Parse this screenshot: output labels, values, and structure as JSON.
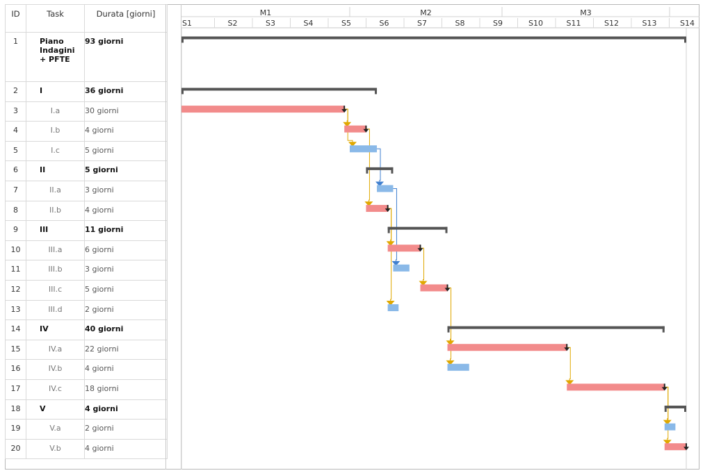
{
  "table": {
    "headers": {
      "id": "ID",
      "task": "Task",
      "duration": "Durata [giorni]"
    },
    "rows": [
      {
        "id": "1",
        "task": "Piano Indagini + PFTE",
        "duration": "93 giorni",
        "summary": true
      },
      {
        "id": "2",
        "task": "I",
        "duration": "36 giorni",
        "summary": true
      },
      {
        "id": "3",
        "task": "I.a",
        "duration": "30 giorni",
        "summary": false
      },
      {
        "id": "4",
        "task": "I.b",
        "duration": "4 giorni",
        "summary": false
      },
      {
        "id": "5",
        "task": "I.c",
        "duration": "5 giorni",
        "summary": false
      },
      {
        "id": "6",
        "task": "II",
        "duration": "5 giorni",
        "summary": true
      },
      {
        "id": "7",
        "task": "II.a",
        "duration": "3 giorni",
        "summary": false
      },
      {
        "id": "8",
        "task": "II.b",
        "duration": "4 giorni",
        "summary": false
      },
      {
        "id": "9",
        "task": "III",
        "duration": "11 giorni",
        "summary": true
      },
      {
        "id": "10",
        "task": "III.a",
        "duration": "6 giorni",
        "summary": false
      },
      {
        "id": "11",
        "task": "III.b",
        "duration": "3 giorni",
        "summary": false
      },
      {
        "id": "12",
        "task": "III.c",
        "duration": "5 giorni",
        "summary": false
      },
      {
        "id": "13",
        "task": "III.d",
        "duration": "2 giorni",
        "summary": false
      },
      {
        "id": "14",
        "task": "IV",
        "duration": "40 giorni",
        "summary": true
      },
      {
        "id": "15",
        "task": "IV.a",
        "duration": "22 giorni",
        "summary": false
      },
      {
        "id": "16",
        "task": "IV.b",
        "duration": "4 giorni",
        "summary": false
      },
      {
        "id": "17",
        "task": "IV.c",
        "duration": "18 giorni",
        "summary": false
      },
      {
        "id": "18",
        "task": "V",
        "duration": "4 giorni",
        "summary": true
      },
      {
        "id": "19",
        "task": "V.a",
        "duration": "2 giorni",
        "summary": false
      },
      {
        "id": "20",
        "task": "V.b",
        "duration": "4 giorni",
        "summary": false
      }
    ]
  },
  "chart_data": {
    "type": "gantt",
    "time_unit": "giorni",
    "months": [
      "M1",
      "M2",
      "M3"
    ],
    "weeks": [
      "S1",
      "S2",
      "S3",
      "S4",
      "S5",
      "S6",
      "S7",
      "S8",
      "S9",
      "S10",
      "S11",
      "S12",
      "S13",
      "S14"
    ],
    "xlim": [
      0,
      93
    ],
    "colors": {
      "critical": "#f28b8b",
      "normal": "#8ab9e8",
      "summary": "#555555",
      "link_critical": "#e0a800",
      "link_normal": "#3f7fcf",
      "arrow": "#222222"
    },
    "tasks": [
      {
        "id": 1,
        "start": 0,
        "duration": 93,
        "kind": "summary"
      },
      {
        "id": 2,
        "start": 0,
        "duration": 36,
        "kind": "summary"
      },
      {
        "id": 3,
        "start": 0,
        "duration": 30,
        "kind": "critical"
      },
      {
        "id": 4,
        "start": 30,
        "duration": 4,
        "kind": "critical"
      },
      {
        "id": 5,
        "start": 31,
        "duration": 5,
        "kind": "normal"
      },
      {
        "id": 6,
        "start": 34,
        "duration": 5,
        "kind": "summary"
      },
      {
        "id": 7,
        "start": 36,
        "duration": 3,
        "kind": "normal"
      },
      {
        "id": 8,
        "start": 34,
        "duration": 4,
        "kind": "critical"
      },
      {
        "id": 9,
        "start": 38,
        "duration": 11,
        "kind": "summary"
      },
      {
        "id": 10,
        "start": 38,
        "duration": 6,
        "kind": "critical"
      },
      {
        "id": 11,
        "start": 39,
        "duration": 3,
        "kind": "normal"
      },
      {
        "id": 12,
        "start": 44,
        "duration": 5,
        "kind": "critical"
      },
      {
        "id": 13,
        "start": 38,
        "duration": 2,
        "kind": "normal"
      },
      {
        "id": 14,
        "start": 49,
        "duration": 40,
        "kind": "summary"
      },
      {
        "id": 15,
        "start": 49,
        "duration": 22,
        "kind": "critical"
      },
      {
        "id": 16,
        "start": 49,
        "duration": 4,
        "kind": "normal"
      },
      {
        "id": 17,
        "start": 71,
        "duration": 18,
        "kind": "critical"
      },
      {
        "id": 18,
        "start": 89,
        "duration": 4,
        "kind": "summary"
      },
      {
        "id": 19,
        "start": 89,
        "duration": 2,
        "kind": "normal"
      },
      {
        "id": 20,
        "start": 89,
        "duration": 4,
        "kind": "critical"
      }
    ],
    "links": [
      {
        "from": 3,
        "to": 4,
        "kind": "critical"
      },
      {
        "from": 3,
        "to": 5,
        "kind": "critical"
      },
      {
        "from": 4,
        "to": 8,
        "kind": "critical"
      },
      {
        "from": 5,
        "to": 7,
        "kind": "normal"
      },
      {
        "from": 8,
        "to": 10,
        "kind": "critical"
      },
      {
        "from": 8,
        "to": 13,
        "kind": "critical"
      },
      {
        "from": 7,
        "to": 11,
        "kind": "normal"
      },
      {
        "from": 10,
        "to": 12,
        "kind": "critical"
      },
      {
        "from": 12,
        "to": 15,
        "kind": "critical"
      },
      {
        "from": 12,
        "to": 16,
        "kind": "critical"
      },
      {
        "from": 15,
        "to": 17,
        "kind": "critical"
      },
      {
        "from": 17,
        "to": 19,
        "kind": "critical"
      },
      {
        "from": 17,
        "to": 20,
        "kind": "critical"
      }
    ]
  }
}
